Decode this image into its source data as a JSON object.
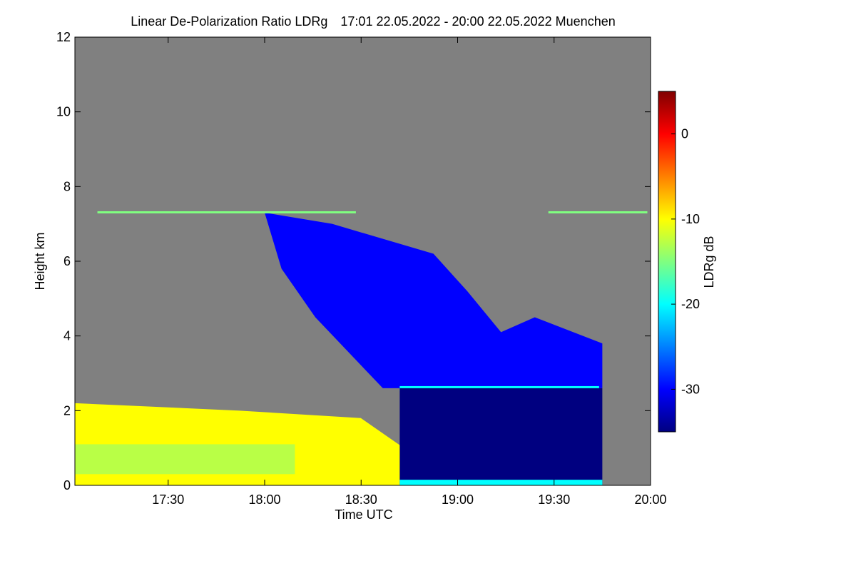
{
  "title": {
    "product": "Linear De-Polarization Ratio LDRg",
    "period": "17:01 22.05.2022 - 20:00 22.05.2022 Muenchen"
  },
  "colors": {
    "background_no_signal": "#808080",
    "colormap": [
      "#000080",
      "#0000ff",
      "#0080ff",
      "#00ffff",
      "#80ff80",
      "#ffff00",
      "#ff8000",
      "#ff0000",
      "#800000"
    ]
  },
  "chart_data": {
    "type": "heatmap",
    "xlabel": "Time UTC",
    "ylabel": "Height km",
    "colorbar_label": "LDRg dB",
    "x_range": [
      "17:01",
      "20:00"
    ],
    "x_ticks": [
      "17:30",
      "18:00",
      "18:30",
      "19:00",
      "19:30",
      "20:00"
    ],
    "y_range": [
      0,
      12
    ],
    "y_ticks": [
      0,
      2,
      4,
      6,
      8,
      10,
      12
    ],
    "colorbar_range": [
      -35,
      5
    ],
    "colorbar_ticks": [
      0,
      -10,
      -20,
      -30
    ],
    "features": [
      {
        "kind": "boundary-layer",
        "x": [
          "17:01",
          "18:55"
        ],
        "height_km": [
          0,
          2.2
        ],
        "ldr_db": -12
      },
      {
        "kind": "cloud",
        "x": [
          "18:00",
          "19:45"
        ],
        "height_km": [
          2.6,
          7.3
        ],
        "ldr_db": -30
      },
      {
        "kind": "cloud-base-layer",
        "x": [
          "18:42",
          "19:44"
        ],
        "height_km": 2.6,
        "ldr_db": -22
      },
      {
        "kind": "precipitation",
        "x": [
          "18:42",
          "19:45"
        ],
        "height_km": [
          0,
          2.6
        ],
        "ldr_db": -34
      },
      {
        "kind": "aerosol-line",
        "x": [
          "17:08",
          "19:59"
        ],
        "height_km": 7.3,
        "ldr_db": -15
      }
    ]
  }
}
